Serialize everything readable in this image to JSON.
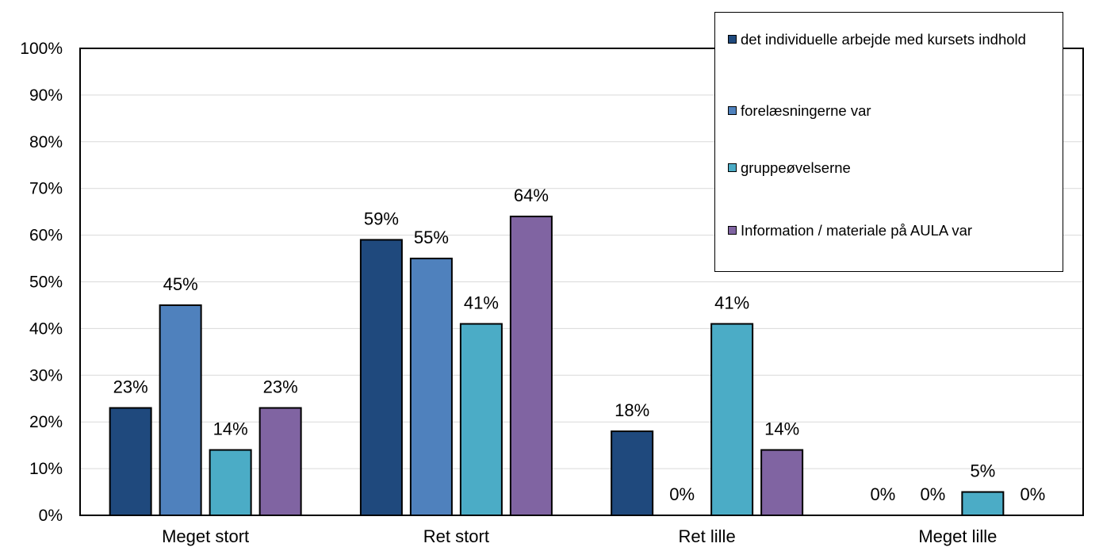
{
  "chart_data": {
    "type": "bar",
    "categories": [
      "Meget stort",
      "Ret stort",
      "Ret lille",
      "Meget lille"
    ],
    "series": [
      {
        "name": "det individuelle arbejde med kursets indhold",
        "values": [
          23,
          59,
          18,
          0
        ],
        "color": "#1f497d"
      },
      {
        "name": "forelæsningerne var",
        "values": [
          45,
          55,
          0,
          0
        ],
        "color": "#4f81bd"
      },
      {
        "name": "gruppeøvelserne",
        "values": [
          14,
          41,
          41,
          5
        ],
        "color": "#4bacc6"
      },
      {
        "name": "Information / materiale på AULA var",
        "values": [
          23,
          64,
          14,
          0
        ],
        "color": "#8064a2"
      }
    ],
    "data_labels": [
      [
        "23%",
        "59%",
        "18%",
        "0%"
      ],
      [
        "45%",
        "55%",
        "0%",
        "0%"
      ],
      [
        "14%",
        "41%",
        "41%",
        "5%"
      ],
      [
        "23%",
        "64%",
        "14%",
        "0%"
      ]
    ],
    "y_ticks": [
      "0%",
      "10%",
      "20%",
      "30%",
      "40%",
      "50%",
      "60%",
      "70%",
      "80%",
      "90%",
      "100%"
    ],
    "ylim": [
      0,
      100
    ],
    "grid": true,
    "legend_position": "top-right"
  }
}
